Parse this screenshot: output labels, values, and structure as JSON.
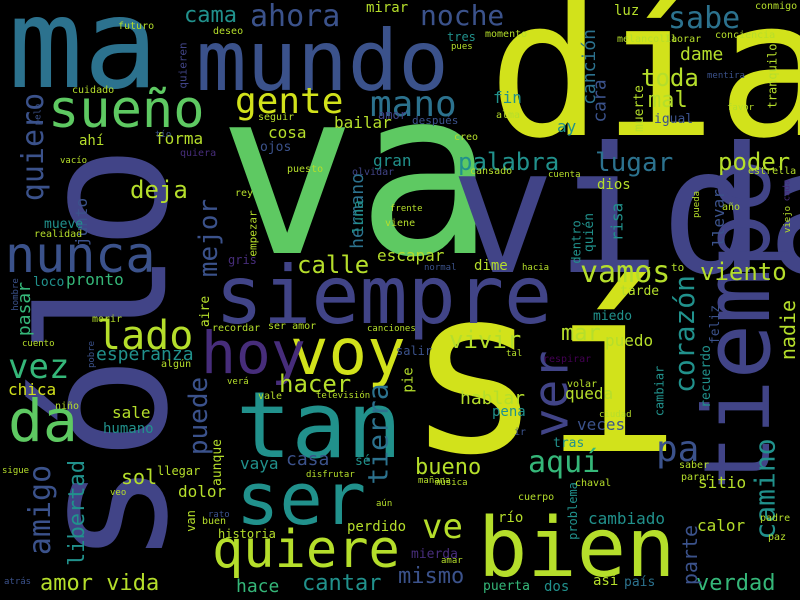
{
  "palette": {
    "yellow": "#d2e21b",
    "lime": "#b5de2b",
    "green": "#5ec962",
    "seafoam": "#35b779",
    "teal": "#21918c",
    "steel": "#2c728e",
    "indigo": "#3b528b",
    "violet": "#414487",
    "purple": "#472d7b",
    "deep": "#440154"
  },
  "words": [
    {
      "text": "sí",
      "color": "yellow"
    },
    {
      "text": "va",
      "color": "green"
    },
    {
      "text": "día",
      "color": "yellow"
    },
    {
      "text": "vida",
      "color": "violet"
    },
    {
      "text": "sólo",
      "color": "violet"
    },
    {
      "text": "ma",
      "color": "steel"
    },
    {
      "text": "mundo",
      "color": "indigo"
    },
    {
      "text": "tiempo",
      "color": "violet"
    },
    {
      "text": "siempre",
      "color": "violet"
    },
    {
      "text": "tan",
      "color": "teal"
    },
    {
      "text": "voy",
      "color": "yellow"
    },
    {
      "text": "hoy",
      "color": "purple"
    },
    {
      "text": "bien",
      "color": "lime"
    },
    {
      "text": "ser",
      "color": "teal"
    },
    {
      "text": "quiere",
      "color": "lime"
    },
    {
      "text": "nunca",
      "color": "indigo"
    },
    {
      "text": "sueño",
      "color": "green"
    },
    {
      "text": "da",
      "color": "green"
    },
    {
      "text": "ver",
      "color": "violet"
    },
    {
      "text": "gente",
      "color": "yellow"
    },
    {
      "text": "mano",
      "color": "steel"
    },
    {
      "text": "lado",
      "color": "lime"
    },
    {
      "text": "vez",
      "color": "seafoam"
    },
    {
      "text": "quiero",
      "color": "indigo"
    },
    {
      "text": "noche",
      "color": "indigo"
    },
    {
      "text": "ahora",
      "color": "indigo"
    },
    {
      "text": "sabe",
      "color": "steel"
    },
    {
      "text": "cama",
      "color": "teal"
    },
    {
      "text": "amigo",
      "color": "indigo"
    },
    {
      "text": "vamos",
      "color": "lime"
    },
    {
      "text": "palabra",
      "color": "teal"
    },
    {
      "text": "lugar",
      "color": "steel"
    },
    {
      "text": "camino",
      "color": "teal"
    },
    {
      "text": "corazón",
      "color": "teal"
    },
    {
      "text": "pa",
      "color": "indigo"
    },
    {
      "text": "aquí",
      "color": "seafoam"
    },
    {
      "text": "puede",
      "color": "indigo"
    },
    {
      "text": "mejor",
      "color": "indigo"
    },
    {
      "text": "tierra",
      "color": "steel"
    },
    {
      "text": "hacer",
      "color": "lime"
    },
    {
      "text": "calle",
      "color": "lime"
    },
    {
      "text": "deja",
      "color": "lime"
    },
    {
      "text": "toda",
      "color": "lime"
    },
    {
      "text": "mal",
      "color": "lime"
    },
    {
      "text": "poder",
      "color": "lime"
    },
    {
      "text": "viento",
      "color": "lime"
    },
    {
      "text": "ve",
      "color": "lime"
    },
    {
      "text": "vivir",
      "color": "lime"
    },
    {
      "text": "mar",
      "color": "lime"
    },
    {
      "text": "mismo",
      "color": "indigo"
    },
    {
      "text": "cantar",
      "color": "teal"
    },
    {
      "text": "verdad",
      "color": "seafoam"
    },
    {
      "text": "amor vida",
      "color": "lime"
    },
    {
      "text": "libertad",
      "color": "teal"
    },
    {
      "text": "bueno",
      "color": "lime"
    },
    {
      "text": "canción",
      "color": "steel"
    },
    {
      "text": "cara",
      "color": "indigo"
    },
    {
      "text": "dame",
      "color": "lime"
    },
    {
      "text": "nadie",
      "color": "lime"
    },
    {
      "text": "parte",
      "color": "indigo"
    },
    {
      "text": "hace",
      "color": "seafoam"
    },
    {
      "text": "esperanza",
      "color": "teal"
    },
    {
      "text": "pasar",
      "color": "seafoam"
    },
    {
      "text": "chica",
      "color": "yellow"
    },
    {
      "text": "hablar",
      "color": "lime"
    },
    {
      "text": "queda",
      "color": "lime"
    },
    {
      "text": "veces",
      "color": "indigo"
    },
    {
      "text": "sol",
      "color": "lime"
    },
    {
      "text": "casa",
      "color": "indigo"
    },
    {
      "text": "vaya",
      "color": "teal"
    },
    {
      "text": "dolor",
      "color": "lime"
    },
    {
      "text": "puedo",
      "color": "lime"
    },
    {
      "text": "pronto",
      "color": "seafoam"
    },
    {
      "text": "hermano",
      "color": "steel"
    },
    {
      "text": "escapar",
      "color": "lime"
    },
    {
      "text": "forma",
      "color": "lime"
    },
    {
      "text": "bailar",
      "color": "lime"
    },
    {
      "text": "cosa",
      "color": "lime"
    },
    {
      "text": "fin",
      "color": "teal"
    },
    {
      "text": "llevar",
      "color": "indigo"
    },
    {
      "text": "cambiado",
      "color": "teal"
    },
    {
      "text": "calor",
      "color": "lime"
    },
    {
      "text": "sitio",
      "color": "lime"
    },
    {
      "text": "sale",
      "color": "lime"
    },
    {
      "text": "perdido",
      "color": "lime"
    },
    {
      "text": "luna",
      "color": "teal"
    },
    {
      "text": "gran",
      "color": "teal"
    },
    {
      "text": "risa",
      "color": "teal"
    },
    {
      "text": "dios",
      "color": "lime"
    },
    {
      "text": "mirar",
      "color": "lime"
    },
    {
      "text": "luz",
      "color": "lime"
    },
    {
      "text": "dime",
      "color": "lime"
    },
    {
      "text": "río",
      "color": "lime"
    },
    {
      "text": "humano",
      "color": "teal"
    },
    {
      "text": "tres",
      "color": "teal"
    },
    {
      "text": "miedo",
      "color": "teal"
    },
    {
      "text": "tarde",
      "color": "lime"
    },
    {
      "text": "muerte",
      "color": "lime"
    },
    {
      "text": "igual",
      "color": "indigo"
    },
    {
      "text": "ojos",
      "color": "indigo"
    },
    {
      "text": "junto",
      "color": "indigo"
    },
    {
      "text": "mueve",
      "color": "teal"
    },
    {
      "text": "ahí",
      "color": "lime"
    },
    {
      "text": "aunque",
      "color": "lime"
    },
    {
      "text": "tras",
      "color": "teal"
    },
    {
      "text": "pena",
      "color": "teal"
    },
    {
      "text": "pie",
      "color": "lime"
    },
    {
      "text": "sé",
      "color": "teal"
    },
    {
      "text": "así",
      "color": "lime"
    },
    {
      "text": "país",
      "color": "steel"
    },
    {
      "text": "puerta",
      "color": "seafoam"
    },
    {
      "text": "dos",
      "color": "teal"
    },
    {
      "text": "mierda",
      "color": "purple"
    },
    {
      "text": "historia",
      "color": "lime"
    },
    {
      "text": "feliz",
      "color": "indigo"
    },
    {
      "text": "recuerdo",
      "color": "teal"
    },
    {
      "text": "dentro",
      "color": "teal"
    },
    {
      "text": "quién",
      "color": "teal"
    },
    {
      "text": "ay",
      "color": "teal"
    },
    {
      "text": "loco",
      "color": "teal"
    },
    {
      "text": "aire",
      "color": "lime"
    },
    {
      "text": "cambiar",
      "color": "teal"
    },
    {
      "text": "problema",
      "color": "teal"
    },
    {
      "text": "estrella",
      "color": "lime"
    },
    {
      "text": "tranquilo",
      "color": "lime"
    },
    {
      "text": "conmigo",
      "color": "lime"
    },
    {
      "text": "conciencia",
      "color": "lime"
    },
    {
      "text": "melancolía",
      "color": "lime"
    },
    {
      "text": "llorar",
      "color": "lime"
    },
    {
      "text": "momento",
      "color": "lime"
    },
    {
      "text": "pues",
      "color": "lime"
    },
    {
      "text": "deseo",
      "color": "lime"
    },
    {
      "text": "futuro",
      "color": "lime"
    },
    {
      "text": "quieren",
      "color": "violet"
    },
    {
      "text": "cuidado",
      "color": "lime"
    },
    {
      "text": "seguir",
      "color": "lime"
    },
    {
      "text": "amor",
      "color": "violet"
    },
    {
      "text": "después",
      "color": "indigo"
    },
    {
      "text": "alma",
      "color": "lime"
    },
    {
      "text": "creo",
      "color": "lime"
    },
    {
      "text": "tío",
      "color": "indigo"
    },
    {
      "text": "quiera",
      "color": "purple"
    },
    {
      "text": "cansado",
      "color": "lime"
    },
    {
      "text": "vacío",
      "color": "lime"
    },
    {
      "text": "puesto",
      "color": "lime"
    },
    {
      "text": "olvidar",
      "color": "violet"
    },
    {
      "text": "rey",
      "color": "lime"
    },
    {
      "text": "frente",
      "color": "lime"
    },
    {
      "text": "viene",
      "color": "lime"
    },
    {
      "text": "realidad",
      "color": "lime"
    },
    {
      "text": "gris",
      "color": "purple"
    },
    {
      "text": "empezar",
      "color": "lime"
    },
    {
      "text": "normal",
      "color": "indigo"
    },
    {
      "text": "hacia",
      "color": "lime"
    },
    {
      "text": "to",
      "color": "lime"
    },
    {
      "text": "hombre",
      "color": "indigo"
    },
    {
      "text": "morir",
      "color": "lime"
    },
    {
      "text": "recordar",
      "color": "lime"
    },
    {
      "text": "ser amor",
      "color": "lime"
    },
    {
      "text": "canciones",
      "color": "lime"
    },
    {
      "text": "salir",
      "color": "indigo"
    },
    {
      "text": "tal",
      "color": "lime"
    },
    {
      "text": "respirar",
      "color": "deep"
    },
    {
      "text": "cuento",
      "color": "lime"
    },
    {
      "text": "pobre",
      "color": "indigo"
    },
    {
      "text": "algún",
      "color": "lime"
    },
    {
      "text": "verá",
      "color": "lime"
    },
    {
      "text": "vale",
      "color": "lime"
    },
    {
      "text": "televisión",
      "color": "lime"
    },
    {
      "text": "volar",
      "color": "lime"
    },
    {
      "text": "ciudad",
      "color": "lime"
    },
    {
      "text": "niño",
      "color": "lime"
    },
    {
      "text": "ir",
      "color": "indigo"
    },
    {
      "text": "mañana",
      "color": "lime"
    },
    {
      "text": "música",
      "color": "lime"
    },
    {
      "text": "chaval",
      "color": "lime"
    },
    {
      "text": "saber",
      "color": "lime"
    },
    {
      "text": "parar",
      "color": "lime"
    },
    {
      "text": "padre",
      "color": "lime"
    },
    {
      "text": "paz",
      "color": "lime"
    },
    {
      "text": "llegar",
      "color": "lime"
    },
    {
      "text": "disfrutar",
      "color": "lime"
    },
    {
      "text": "aún",
      "color": "lime"
    },
    {
      "text": "cuerpo",
      "color": "lime"
    },
    {
      "text": "veo",
      "color": "lime"
    },
    {
      "text": "van",
      "color": "lime"
    },
    {
      "text": "rato",
      "color": "indigo"
    },
    {
      "text": "buen",
      "color": "lime"
    },
    {
      "text": "amar",
      "color": "lime"
    },
    {
      "text": "sigue",
      "color": "lime"
    },
    {
      "text": "atrás",
      "color": "indigo"
    },
    {
      "text": "favor",
      "color": "lime"
    },
    {
      "text": "mentira",
      "color": "indigo"
    },
    {
      "text": "pelo",
      "color": "indigo"
    },
    {
      "text": "cuenta",
      "color": "lime"
    },
    {
      "text": "pueda",
      "color": "lime"
    },
    {
      "text": "año",
      "color": "lime"
    },
    {
      "text": "viejo",
      "color": "lime"
    },
    {
      "text": "cada",
      "color": "purple"
    }
  ]
}
